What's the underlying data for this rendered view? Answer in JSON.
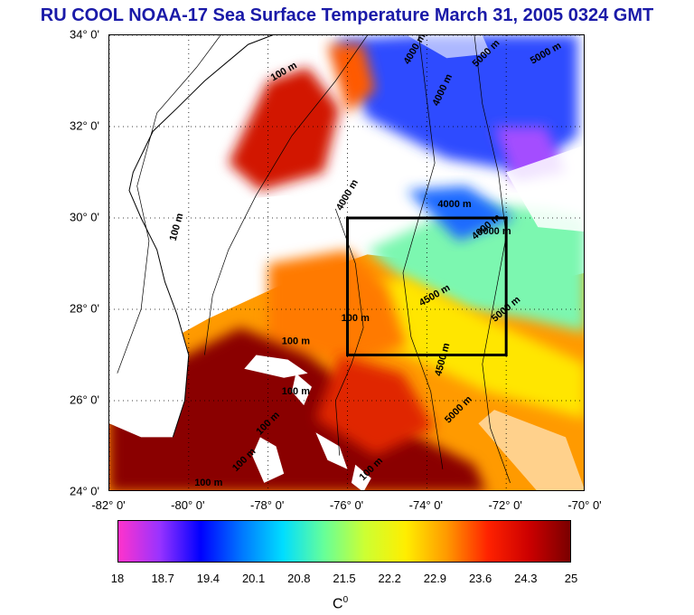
{
  "title": "RU COOL  NOAA-17 Sea Surface Temperature March 31, 2005 0324 GMT",
  "map": {
    "latitude_labels": [
      "34° 0'",
      "32° 0'",
      "30° 0'",
      "28° 0'",
      "26° 0'",
      "24° 0'"
    ],
    "longitude_labels": [
      "-82° 0'",
      "-80° 0'",
      "-78° 0'",
      "-76° 0'",
      "-74° 0'",
      "-72° 0'",
      "-70° 0'"
    ],
    "lat_range": [
      24,
      34
    ],
    "lon_range": [
      -82,
      -70
    ],
    "grid": "dotted",
    "study_box": {
      "lon": [
        -76,
        -72
      ],
      "lat": [
        27,
        30
      ]
    },
    "contour_labels": [
      {
        "text": "100 m",
        "lon": -77.6,
        "lat": 33.2,
        "angle": -30
      },
      {
        "text": "4000 m",
        "lon": -74.3,
        "lat": 33.7,
        "angle": -60
      },
      {
        "text": "4000 m",
        "lon": -73.6,
        "lat": 32.8,
        "angle": -65
      },
      {
        "text": "5000 m",
        "lon": -72.5,
        "lat": 33.6,
        "angle": -45
      },
      {
        "text": "5000 m",
        "lon": -71.0,
        "lat": 33.6,
        "angle": -30
      },
      {
        "text": "4000 m",
        "lon": -76.0,
        "lat": 30.5,
        "angle": -60
      },
      {
        "text": "4000 m",
        "lon": -73.3,
        "lat": 30.3,
        "angle": 0
      },
      {
        "text": "4000 m",
        "lon": -72.5,
        "lat": 29.8,
        "angle": -40
      },
      {
        "text": "4000 m",
        "lon": -72.3,
        "lat": 29.7,
        "angle": 0
      },
      {
        "text": "100 m",
        "lon": -80.3,
        "lat": 29.8,
        "angle": -75
      },
      {
        "text": "4500 m",
        "lon": -73.8,
        "lat": 28.3,
        "angle": -30
      },
      {
        "text": "5000 m",
        "lon": -72.0,
        "lat": 28.0,
        "angle": -40
      },
      {
        "text": "4500 m",
        "lon": -73.6,
        "lat": 26.9,
        "angle": -75
      },
      {
        "text": "5000 m",
        "lon": -73.2,
        "lat": 25.8,
        "angle": -45
      },
      {
        "text": "100 m",
        "lon": -77.3,
        "lat": 27.3,
        "angle": 0
      },
      {
        "text": "100 m",
        "lon": -77.3,
        "lat": 26.2,
        "angle": 0
      },
      {
        "text": "100 m",
        "lon": -78.0,
        "lat": 25.5,
        "angle": -45
      },
      {
        "text": "100 m",
        "lon": -78.6,
        "lat": 24.7,
        "angle": -45
      },
      {
        "text": "100 m",
        "lon": -75.4,
        "lat": 24.5,
        "angle": -45
      },
      {
        "text": "100 m",
        "lon": -75.8,
        "lat": 27.8,
        "angle": 0
      },
      {
        "text": "100 m",
        "lon": -79.5,
        "lat": 24.2,
        "angle": 0
      }
    ]
  },
  "colorbar": {
    "ticks": [
      "18",
      "18.7",
      "19.4",
      "20.1",
      "20.8",
      "21.5",
      "22.2",
      "22.9",
      "23.6",
      "24.3",
      "25"
    ],
    "range": [
      18,
      25
    ],
    "colors": [
      "#ff33cc",
      "#9933ff",
      "#0000ff",
      "#0077ff",
      "#00ddff",
      "#66ff99",
      "#ccff33",
      "#ffee00",
      "#ff9900",
      "#ff2200",
      "#cc0000",
      "#7a0000"
    ],
    "unit_base": "C",
    "unit_sup": "0"
  }
}
